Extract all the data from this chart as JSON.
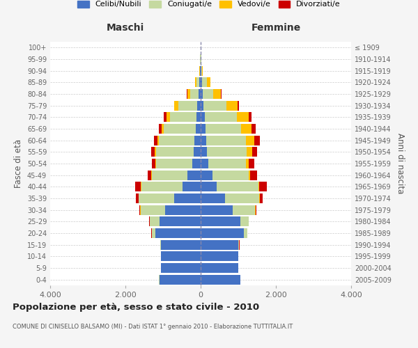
{
  "age_groups": [
    "0-4",
    "5-9",
    "10-14",
    "15-19",
    "20-24",
    "25-29",
    "30-34",
    "35-39",
    "40-44",
    "45-49",
    "50-54",
    "55-59",
    "60-64",
    "65-69",
    "70-74",
    "75-79",
    "80-84",
    "85-89",
    "90-94",
    "95-99",
    "100+"
  ],
  "birth_years": [
    "2005-2009",
    "2000-2004",
    "1995-1999",
    "1990-1994",
    "1985-1989",
    "1980-1984",
    "1975-1979",
    "1970-1974",
    "1965-1969",
    "1960-1964",
    "1955-1959",
    "1950-1954",
    "1945-1949",
    "1940-1944",
    "1935-1939",
    "1930-1934",
    "1925-1929",
    "1920-1924",
    "1915-1919",
    "1910-1914",
    "≤ 1909"
  ],
  "male": {
    "celibe": [
      1100,
      1050,
      1050,
      1050,
      1200,
      1100,
      950,
      700,
      480,
      350,
      230,
      190,
      160,
      130,
      120,
      100,
      50,
      30,
      10,
      5,
      2
    ],
    "coniugato": [
      2,
      5,
      10,
      30,
      100,
      250,
      650,
      950,
      1100,
      950,
      950,
      1000,
      950,
      850,
      700,
      500,
      230,
      80,
      15,
      5,
      2
    ],
    "vedovo": [
      0,
      0,
      0,
      0,
      1,
      2,
      3,
      5,
      10,
      10,
      20,
      30,
      40,
      60,
      80,
      100,
      80,
      30,
      5,
      2,
      0
    ],
    "divorziato": [
      0,
      0,
      0,
      2,
      5,
      10,
      30,
      70,
      150,
      100,
      100,
      100,
      100,
      80,
      80,
      10,
      5,
      0,
      0,
      0,
      0
    ]
  },
  "female": {
    "nubile": [
      1050,
      1000,
      1000,
      1000,
      1150,
      1050,
      850,
      650,
      430,
      320,
      200,
      170,
      150,
      130,
      120,
      80,
      60,
      40,
      10,
      8,
      2
    ],
    "coniugata": [
      2,
      3,
      8,
      25,
      90,
      220,
      600,
      900,
      1100,
      950,
      1000,
      1050,
      1050,
      950,
      850,
      600,
      280,
      120,
      20,
      5,
      2
    ],
    "vedova": [
      0,
      0,
      0,
      1,
      2,
      5,
      10,
      20,
      30,
      50,
      80,
      150,
      220,
      280,
      300,
      300,
      200,
      100,
      20,
      5,
      0
    ],
    "divorziata": [
      0,
      0,
      0,
      2,
      5,
      10,
      30,
      80,
      200,
      180,
      150,
      130,
      150,
      100,
      80,
      30,
      10,
      0,
      0,
      0,
      0
    ]
  },
  "colors": {
    "celibe": "#4472c4",
    "coniugato": "#c5d9a0",
    "vedovo": "#ffc000",
    "divorziato": "#cc0000"
  },
  "xlim": 4000,
  "title": "Popolazione per età, sesso e stato civile - 2010",
  "subtitle": "COMUNE DI CINISELLO BALSAMO (MI) - Dati ISTAT 1° gennaio 2010 - Elaborazione TUTTITALIA.IT",
  "xlabel_left": "Maschi",
  "xlabel_right": "Femmine",
  "ylabel_left": "Fasce di età",
  "ylabel_right": "Anni di nascita",
  "legend_labels": [
    "Celibi/Nubili",
    "Coniugati/e",
    "Vedovi/e",
    "Divorziati/e"
  ],
  "legend_colors": [
    "#4472c4",
    "#c5d9a0",
    "#ffc000",
    "#cc0000"
  ],
  "bg_color": "#f5f5f5",
  "plot_bg": "#ffffff",
  "tick_color": "#666666",
  "grid_color": "#cccccc"
}
